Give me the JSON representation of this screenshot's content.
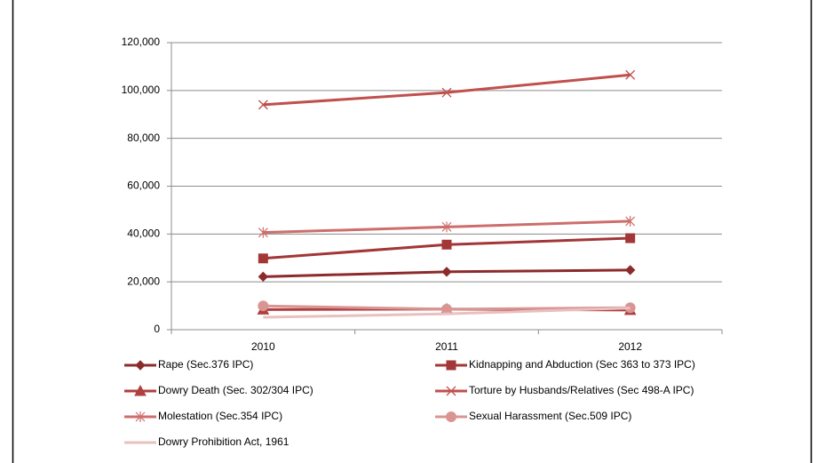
{
  "chart_data": {
    "type": "line",
    "categories": [
      "2010",
      "2011",
      "2012"
    ],
    "series": [
      {
        "name": "Rape (Sec.376 IPC)",
        "color": "#8c2b2b",
        "marker": "diamond",
        "values": [
          22172,
          24206,
          24923
        ]
      },
      {
        "name": "Kidnapping and Abduction (Sec 363 to 373 IPC)",
        "color": "#a33636",
        "marker": "square",
        "values": [
          29795,
          35565,
          38262
        ]
      },
      {
        "name": "Dowry Death (Sec. 302/304 IPC)",
        "color": "#b03f3f",
        "marker": "triangle",
        "values": [
          8391,
          8618,
          8233
        ]
      },
      {
        "name": "Torture by Husbands/Relatives (Sec 498-A IPC)",
        "color": "#c0504d",
        "marker": "x",
        "values": [
          94041,
          99135,
          106527
        ]
      },
      {
        "name": "Molestation (Sec.354 IPC)",
        "color": "#cd6e6b",
        "marker": "star",
        "values": [
          40613,
          42968,
          45351
        ]
      },
      {
        "name": "Sexual Harassment (Sec.509 IPC)",
        "color": "#d99594",
        "marker": "circle",
        "values": [
          9961,
          8570,
          9173
        ]
      },
      {
        "name": "Dowry Prohibition Act, 1961",
        "color": "#e8c0bf",
        "marker": "none",
        "values": [
          5182,
          6619,
          9038
        ]
      }
    ],
    "ylim": [
      0,
      120000
    ],
    "yticks": [
      {
        "value": 0,
        "label": "0"
      },
      {
        "value": 20000,
        "label": "20,000"
      },
      {
        "value": 40000,
        "label": "40,000"
      },
      {
        "value": 60000,
        "label": "60,000"
      },
      {
        "value": 80000,
        "label": "80,000"
      },
      {
        "value": 100000,
        "label": "100,000"
      },
      {
        "value": 120000,
        "label": "120,000"
      }
    ],
    "grid": true,
    "legend": "bottom"
  }
}
